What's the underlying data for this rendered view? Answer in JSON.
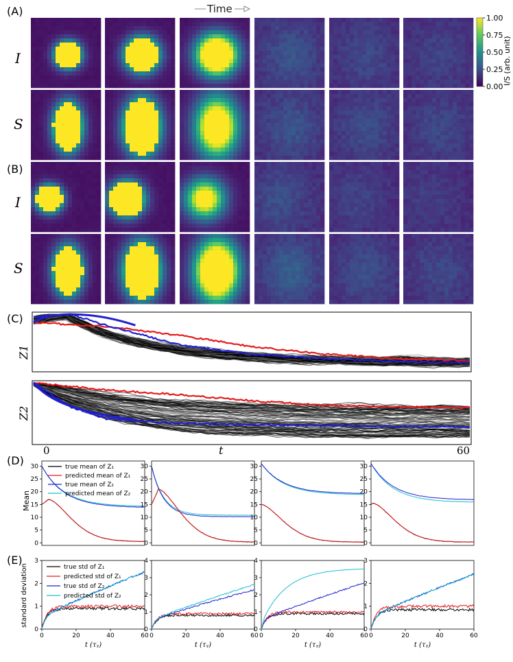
{
  "panel_labels": [
    "(A)",
    "(B)",
    "(C)",
    "(D)",
    "(E)"
  ],
  "time_arrow_label": "Time",
  "heatmap_row_labels": [
    "I",
    "S",
    "I",
    "S"
  ],
  "colorbar": {
    "label": "I/S (arb. unit)",
    "ticks": [
      "0.00",
      "0.25",
      "0.50",
      "0.75",
      "1.00"
    ],
    "colormap": [
      "#440154",
      "#3b528b",
      "#21918c",
      "#5ec962",
      "#fde725"
    ]
  },
  "colors": {
    "true_z1": "#000000",
    "pred_z1": "#e41a1c",
    "true_z2": "#1f1fd0",
    "pred_z2": "#17becf"
  },
  "trajectories": {
    "ylabels": [
      "Z1",
      "Z2"
    ],
    "x_tick_labels": [
      "0",
      "t",
      "60"
    ]
  },
  "chart_data": [
    {
      "type": "heatmap",
      "panel": "(A)",
      "rows": [
        "I",
        "S"
      ],
      "frames": 6,
      "levels_I": [
        1.0,
        1.0,
        1.0,
        0.35,
        0.25,
        0.2
      ],
      "levels_S": [
        1.0,
        1.0,
        0.8,
        0.35,
        0.3,
        0.25
      ],
      "zlim": [
        0,
        1
      ]
    },
    {
      "type": "heatmap",
      "panel": "(B)",
      "rows": [
        "I",
        "S"
      ],
      "frames": 6,
      "levels_I": [
        1.0,
        1.0,
        0.65,
        0.3,
        0.2,
        0.15
      ],
      "levels_S": [
        1.0,
        1.0,
        1.0,
        0.45,
        0.3,
        0.25
      ],
      "zlim": [
        0,
        1
      ]
    },
    {
      "type": "line",
      "panel": "(C)",
      "xlim": [
        0,
        60
      ],
      "subplots": [
        {
          "ylabel": "Z1",
          "red_mean": [
            [
              0,
              0.15
            ],
            [
              10,
              0.22
            ],
            [
              20,
              0.38
            ],
            [
              30,
              0.58
            ],
            [
              40,
              0.72
            ],
            [
              50,
              0.8
            ],
            [
              60,
              0.84
            ]
          ],
          "blue_mean": [
            [
              0,
              0.05
            ],
            [
              5,
              0.0
            ],
            [
              10,
              0.2
            ],
            [
              20,
              0.55
            ],
            [
              30,
              0.72
            ],
            [
              40,
              0.8
            ],
            [
              50,
              0.85
            ],
            [
              60,
              0.87
            ]
          ]
        },
        {
          "ylabel": "Z2",
          "red_mean": [
            [
              0,
              0.0
            ],
            [
              10,
              0.12
            ],
            [
              20,
              0.2
            ],
            [
              30,
              0.3
            ],
            [
              40,
              0.38
            ],
            [
              50,
              0.4
            ],
            [
              60,
              0.42
            ]
          ],
          "blue_mean": [
            [
              0,
              0.0
            ],
            [
              5,
              0.4
            ],
            [
              10,
              0.6
            ],
            [
              20,
              0.68
            ],
            [
              30,
              0.7
            ],
            [
              40,
              0.72
            ],
            [
              50,
              0.73
            ],
            [
              60,
              0.74
            ]
          ]
        }
      ]
    },
    {
      "type": "line",
      "panel": "(D)",
      "ylabel": "Mean",
      "xlim": [
        0,
        60
      ],
      "ylim": [
        -1,
        32
      ],
      "yticks": [
        0,
        5,
        10,
        15,
        20,
        25,
        30
      ],
      "legend": [
        "true mean of Z₁",
        "predicted mean of Z₁",
        "true mean of Z₂",
        "predicted mean of Z₂"
      ],
      "subplots": [
        {
          "z1_peak_t": 4,
          "z1_peak": 17,
          "z1_end": 0.5,
          "z2_start": 30,
          "z2_end_true": 13.8,
          "z2_end_pred": 14.2
        },
        {
          "z1_peak_t": 4,
          "z1_peak": 21,
          "z1_end": 0.3,
          "z2_start": 30,
          "z2_end_true": 10.2,
          "z2_end_pred": 10.8
        },
        {
          "z1_peak_t": 0,
          "z1_peak": 15,
          "z1_end": 0.3,
          "z2_start": 31,
          "z2_end_true": 19.2,
          "z2_end_pred": 18.8
        },
        {
          "z1_peak_t": 1,
          "z1_peak": 15.5,
          "z1_end": 0.3,
          "z2_start": 31,
          "z2_end_true": 16.8,
          "z2_end_pred": 15.8
        }
      ]
    },
    {
      "type": "line",
      "panel": "(E)",
      "ylabel": "standard deviation",
      "xlabel": "t   (τᵧ)",
      "xlim": [
        0,
        60
      ],
      "xticks": [
        0,
        20,
        40,
        60
      ],
      "legend": [
        "true std of Z₁",
        "predicted std of Z₁",
        "true std of Z₂",
        "predicted std of Z₂"
      ],
      "subplots": [
        {
          "ylim": [
            0,
            3
          ],
          "yticks": [
            0,
            1,
            2,
            3
          ],
          "z1_true_end": 0.9,
          "z1_pred_end": 1.0,
          "z2_true_end": 2.5,
          "z2_pred_end": 2.5
        },
        {
          "ylim": [
            0,
            4
          ],
          "yticks": [
            0,
            1,
            2,
            3,
            4
          ],
          "z1_true_end": 0.8,
          "z1_pred_end": 0.9,
          "z2_true_end": 2.3,
          "z2_pred_end": 2.6
        },
        {
          "ylim": [
            0,
            4
          ],
          "yticks": [
            0,
            1,
            2,
            3,
            4
          ],
          "z1_true_end": 0.9,
          "z1_pred_end": 1.0,
          "z2_true_end": 2.7,
          "z2_pred_end": 3.25
        },
        {
          "ylim": [
            0,
            3
          ],
          "yticks": [
            0,
            1,
            2,
            3
          ],
          "z1_true_end": 0.85,
          "z1_pred_end": 1.0,
          "z2_true_end": 2.4,
          "z2_pred_end": 2.4
        }
      ]
    }
  ]
}
